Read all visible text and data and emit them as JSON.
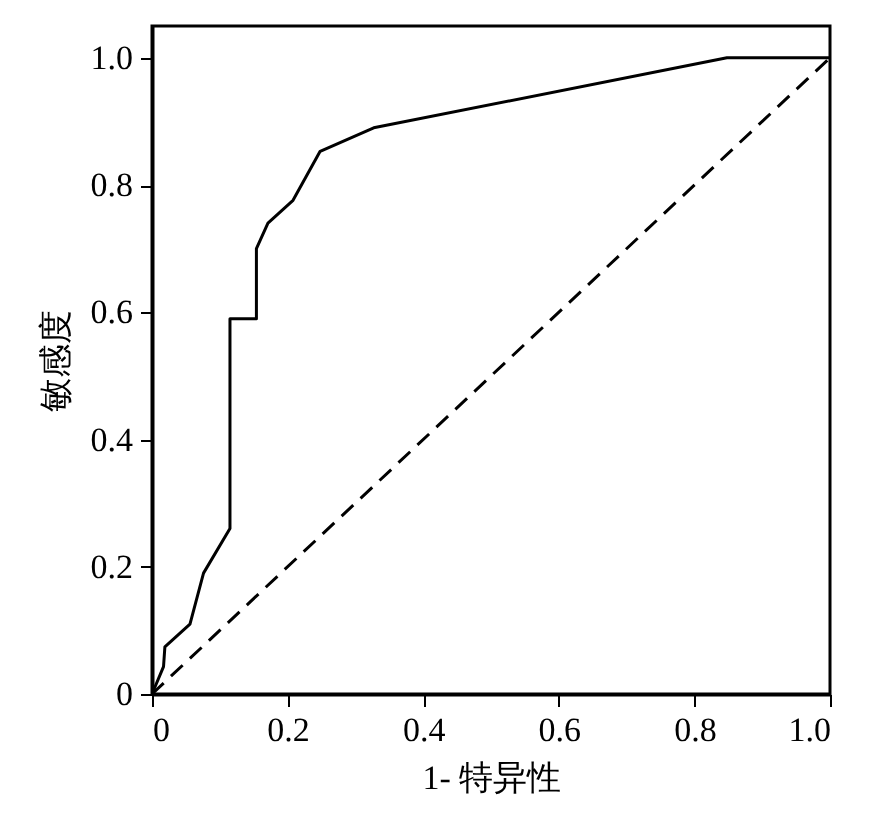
{
  "chart_data": {
    "type": "line",
    "xlabel": "1- 特异性",
    "ylabel": "敏感度",
    "xlim": [
      0,
      1
    ],
    "ylim": [
      0,
      1.05
    ],
    "xticks": [
      {
        "value": 0,
        "label": "0"
      },
      0.2,
      0.4,
      0.6,
      0.8,
      {
        "value": 1,
        "label": "1.0"
      }
    ],
    "yticks": [
      {
        "value": 0,
        "label": "0"
      },
      0.2,
      0.4,
      0.6,
      0.8,
      {
        "value": 1,
        "label": "1.0"
      }
    ],
    "grid": false,
    "marker": "none",
    "series": [
      {
        "color": "#000000",
        "line_style": "solid",
        "x": [
          0,
          0.017,
          0.019,
          0.056,
          0.076,
          0.115,
          0.115,
          0.154,
          0.154,
          0.171,
          0.208,
          0.248,
          0.327,
          0.848,
          1
        ],
        "values": [
          0,
          0.043,
          0.074,
          0.11,
          0.19,
          0.26,
          0.59,
          0.59,
          0.7,
          0.74,
          0.776,
          0.853,
          0.89,
          1,
          1
        ]
      },
      {
        "color": "#000000",
        "line_style": "dashed",
        "x": [
          0,
          1
        ],
        "values": [
          0,
          1
        ]
      }
    ]
  }
}
